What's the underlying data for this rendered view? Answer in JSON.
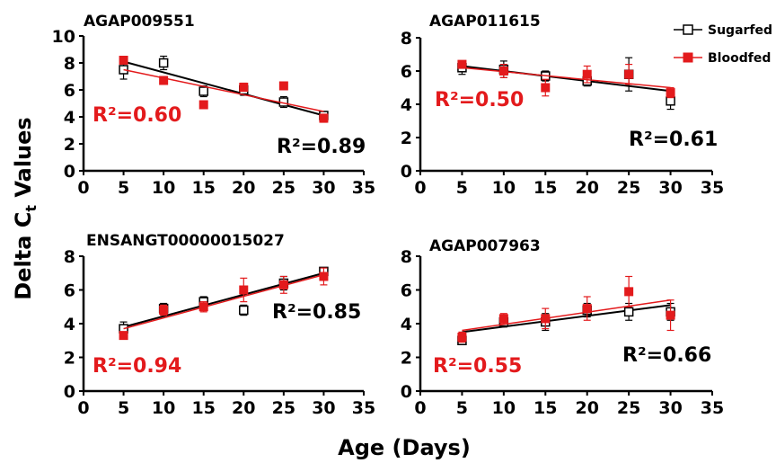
{
  "chart_data": {
    "type": "scatter",
    "ylabel": "Delta C",
    "ylabel_sub": "t",
    "ylabel_suffix": " Values",
    "xlabel": "Age (Days)",
    "legend": {
      "placement": "top-right",
      "entries": [
        {
          "name": "Sugarfed",
          "color": "#000000",
          "marker": "open-square"
        },
        {
          "name": "Bloodfed",
          "color": "#e31a1c",
          "marker": "filled-square"
        }
      ]
    },
    "x_ticks": [
      "0",
      "5",
      "10",
      "15",
      "20",
      "25",
      "30",
      "35"
    ],
    "xlim": [
      0,
      35
    ],
    "panels": [
      {
        "title": "AGAP009551",
        "ylim": [
          0,
          10
        ],
        "y_ticks": [
          "0",
          "2",
          "4",
          "6",
          "8",
          "10"
        ],
        "y_tick_values": [
          0,
          2,
          4,
          6,
          8,
          10
        ],
        "series": [
          {
            "name": "Sugarfed",
            "x": [
              5,
              10,
              15,
              20,
              25,
              30
            ],
            "y": [
              7.5,
              8.0,
              5.9,
              6.0,
              5.1,
              4.1
            ],
            "err": [
              0.7,
              0.5,
              0.4,
              0.4,
              0.4,
              0.3
            ],
            "fit": [
              [
                5,
                8.1
              ],
              [
                30,
                4.1
              ]
            ],
            "r2": "R²=0.89"
          },
          {
            "name": "Bloodfed",
            "x": [
              5,
              10,
              15,
              20,
              25,
              30
            ],
            "y": [
              8.2,
              6.7,
              4.9,
              6.2,
              6.3,
              3.9
            ],
            "err": [
              0.1,
              0.2,
              0.2,
              0.3,
              0.1,
              0.3
            ],
            "fit": [
              [
                5,
                7.5
              ],
              [
                30,
                4.4
              ]
            ],
            "r2": "R²=0.60"
          }
        ]
      },
      {
        "title": "AGAP011615",
        "ylim": [
          0,
          8
        ],
        "y_ticks": [
          "0",
          "2",
          "4",
          "6",
          "8"
        ],
        "y_tick_values": [
          0,
          2,
          4,
          6,
          8
        ],
        "series": [
          {
            "name": "Sugarfed",
            "x": [
              5,
              10,
              15,
              20,
              25,
              30
            ],
            "y": [
              6.2,
              6.1,
              5.7,
              5.4,
              5.8,
              4.2
            ],
            "err": [
              0.4,
              0.5,
              0.3,
              0.3,
              1.0,
              0.5
            ],
            "fit": [
              [
                5,
                6.3
              ],
              [
                30,
                4.8
              ]
            ],
            "r2": "R²=0.61"
          },
          {
            "name": "Bloodfed",
            "x": [
              5,
              10,
              15,
              20,
              25,
              30
            ],
            "y": [
              6.4,
              6.0,
              5.0,
              5.8,
              5.8,
              4.7
            ],
            "err": [
              0.2,
              0.4,
              0.5,
              0.5,
              0.6,
              0.3
            ],
            "fit": [
              [
                5,
                6.2
              ],
              [
                30,
                5.0
              ]
            ],
            "r2": "R²=0.50"
          }
        ]
      },
      {
        "title": "ENSANGT00000015027",
        "ylim": [
          0,
          8
        ],
        "y_ticks": [
          "0",
          "2",
          "4",
          "6",
          "8"
        ],
        "y_tick_values": [
          0,
          2,
          4,
          6,
          8
        ],
        "series": [
          {
            "name": "Sugarfed",
            "x": [
              5,
              10,
              15,
              20,
              25,
              30
            ],
            "y": [
              3.7,
              4.9,
              5.3,
              4.8,
              6.4,
              7.1
            ],
            "err": [
              0.4,
              0.3,
              0.3,
              0.3,
              0.4,
              0.2
            ],
            "fit": [
              [
                5,
                3.8
              ],
              [
                30,
                7.0
              ]
            ],
            "r2": "R²=0.85"
          },
          {
            "name": "Bloodfed",
            "x": [
              5,
              10,
              15,
              20,
              25,
              30
            ],
            "y": [
              3.3,
              4.8,
              5.0,
              6.0,
              6.3,
              6.8
            ],
            "err": [
              0.2,
              0.3,
              0.3,
              0.7,
              0.5,
              0.5
            ],
            "fit": [
              [
                5,
                3.7
              ],
              [
                30,
                6.9
              ]
            ],
            "r2": "R²=0.94"
          }
        ]
      },
      {
        "title": "AGAP007963",
        "ylim": [
          0,
          8
        ],
        "y_ticks": [
          "0",
          "2",
          "4",
          "6",
          "8"
        ],
        "y_tick_values": [
          0,
          2,
          4,
          6,
          8
        ],
        "series": [
          {
            "name": "Sugarfed",
            "x": [
              5,
              10,
              15,
              20,
              25,
              30
            ],
            "y": [
              3.0,
              4.1,
              4.1,
              4.8,
              4.7,
              4.7
            ],
            "err": [
              0.2,
              0.3,
              0.5,
              0.4,
              0.5,
              0.5
            ],
            "fit": [
              [
                5,
                3.5
              ],
              [
                30,
                5.1
              ]
            ],
            "r2": "R²=0.66"
          },
          {
            "name": "Bloodfed",
            "x": [
              5,
              10,
              15,
              20,
              25,
              30
            ],
            "y": [
              3.2,
              4.3,
              4.3,
              4.9,
              5.9,
              4.5
            ],
            "err": [
              0.3,
              0.3,
              0.6,
              0.7,
              0.9,
              0.9
            ],
            "fit": [
              [
                5,
                3.6
              ],
              [
                30,
                5.4
              ]
            ],
            "r2": "R²=0.55"
          }
        ]
      }
    ]
  }
}
